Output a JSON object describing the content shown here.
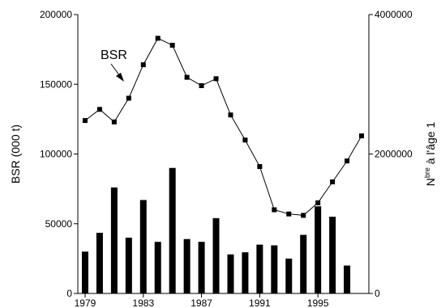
{
  "chart_data": {
    "type": "bar+line",
    "title": "",
    "annotations": [
      "BSR"
    ],
    "left_axis": {
      "label": "BSR (000 t)",
      "range": [
        0,
        200000
      ],
      "ticks": [
        0,
        50000,
        100000,
        150000,
        200000
      ],
      "tick_labels": [
        "0",
        "50000",
        "100000",
        "150000",
        "200000"
      ]
    },
    "right_axis": {
      "label_main": "N",
      "label_sup": "bre",
      "label_rest": " à l'âge 1",
      "range": [
        0,
        4000000
      ],
      "ticks": [
        0,
        2000000,
        4000000
      ],
      "tick_labels": [
        "0",
        "2000000",
        "4000000"
      ]
    },
    "x_axis": {
      "range": [
        1978.5,
        1998.5
      ],
      "ticks": [
        1979,
        1983,
        1987,
        1991,
        1995
      ],
      "tick_labels": [
        "1979",
        "1983",
        "1987",
        "1991",
        "1995"
      ]
    },
    "series": [
      {
        "name": "BSR",
        "type": "line",
        "axis": "left",
        "x": [
          1979,
          1980,
          1981,
          1982,
          1983,
          1984,
          1985,
          1986,
          1987,
          1988,
          1989,
          1990,
          1991,
          1992,
          1993,
          1994,
          1995,
          1996,
          1997,
          1998
        ],
        "values": [
          124000,
          132000,
          123000,
          140000,
          164000,
          183000,
          178000,
          155000,
          149000,
          154000,
          128000,
          110000,
          91000,
          60000,
          57000,
          56000,
          65000,
          80000,
          95000,
          113000
        ]
      },
      {
        "type": "bar",
        "axis": "right",
        "x": [
          1979,
          1980,
          1981,
          1982,
          1983,
          1984,
          1985,
          1986,
          1987,
          1988,
          1989,
          1990,
          1991,
          1992,
          1993,
          1994,
          1995,
          1996,
          1997
        ],
        "values": [
          600000,
          870000,
          1520000,
          800000,
          1340000,
          740000,
          1800000,
          780000,
          740000,
          1080000,
          560000,
          590000,
          700000,
          690000,
          500000,
          840000,
          1250000,
          1100000,
          400000
        ]
      }
    ]
  }
}
